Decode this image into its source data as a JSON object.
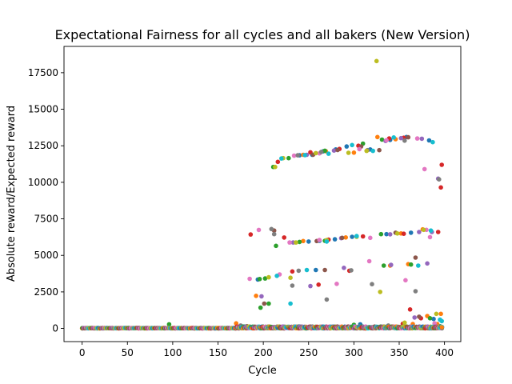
{
  "chart_data": {
    "type": "scatter",
    "title": "Expectational Fairness for all cycles and all bakers (New Version)",
    "xlabel": "Cycle",
    "ylabel": "Absolute reward/Expected reward",
    "xlim": [
      -20,
      418
    ],
    "ylim": [
      -900,
      19300
    ],
    "xticks": [
      0,
      50,
      100,
      150,
      200,
      250,
      300,
      350,
      400
    ],
    "yticks": [
      0,
      2500,
      5000,
      7500,
      10000,
      12500,
      15000,
      17500
    ],
    "grid": false,
    "legend": "none",
    "marker": "circle",
    "palette": [
      "#1f77b4",
      "#ff7f0e",
      "#2ca02c",
      "#d62728",
      "#9467bd",
      "#8c564b",
      "#e377c2",
      "#7f7f7f",
      "#bcbd22",
      "#17becf"
    ],
    "series": [
      {
        "points": [
          [
            240,
            11850
          ],
          [
            254,
            11880
          ],
          [
            266,
            12120
          ],
          [
            280,
            12250
          ],
          [
            292,
            12450
          ],
          [
            318,
            12250
          ],
          [
            340,
            12900
          ],
          [
            358,
            13100
          ],
          [
            383,
            12870
          ],
          [
            250,
            5950
          ],
          [
            262,
            6000
          ],
          [
            279,
            6100
          ],
          [
            298,
            6270
          ],
          [
            336,
            6450
          ],
          [
            363,
            6550
          ],
          [
            194,
            3350
          ],
          [
            258,
            4000
          ],
          [
            307,
            280
          ],
          [
            388,
            650
          ],
          [
            392,
            100
          ]
        ]
      },
      {
        "points": [
          [
            244,
            11880
          ],
          [
            269,
            12130
          ],
          [
            300,
            12030
          ],
          [
            326,
            13100
          ],
          [
            346,
            12950
          ],
          [
            244,
            5980
          ],
          [
            291,
            6230
          ],
          [
            352,
            6500
          ],
          [
            376,
            6780
          ],
          [
            192,
            2230
          ],
          [
            340,
            4300
          ],
          [
            360,
            4400
          ],
          [
            381,
            850
          ],
          [
            396,
            1000
          ],
          [
            170,
            350
          ],
          [
            365,
            300
          ],
          [
            392,
            300
          ]
        ]
      },
      {
        "points": [
          [
            211,
            11050
          ],
          [
            228,
            11650
          ],
          [
            268,
            12160
          ],
          [
            310,
            12650
          ],
          [
            331,
            12920
          ],
          [
            214,
            5650
          ],
          [
            240,
            5920
          ],
          [
            268,
            6000
          ],
          [
            330,
            6450
          ],
          [
            196,
            3380
          ],
          [
            202,
            3420
          ],
          [
            197,
            1420
          ],
          [
            206,
            1700
          ],
          [
            333,
            4300
          ],
          [
            363,
            4370
          ],
          [
            384,
            700
          ],
          [
            96,
            280
          ],
          [
            300,
            250
          ],
          [
            395,
            150
          ]
        ]
      },
      {
        "points": [
          [
            216,
            11400
          ],
          [
            252,
            12050
          ],
          [
            284,
            12280
          ],
          [
            305,
            12500
          ],
          [
            339,
            13000
          ],
          [
            355,
            13050
          ],
          [
            397,
            11200
          ],
          [
            186,
            6430
          ],
          [
            223,
            6220
          ],
          [
            272,
            6080
          ],
          [
            310,
            6300
          ],
          [
            355,
            6480
          ],
          [
            393,
            6600
          ],
          [
            232,
            3900
          ],
          [
            261,
            3000
          ],
          [
            295,
            3950
          ],
          [
            362,
            1300
          ],
          [
            374,
            700
          ],
          [
            354,
            320
          ],
          [
            396,
            9650
          ]
        ]
      },
      {
        "points": [
          [
            248,
            11880
          ],
          [
            278,
            12170
          ],
          [
            335,
            12830
          ],
          [
            352,
            13020
          ],
          [
            375,
            12980
          ],
          [
            393,
            10250
          ],
          [
            233,
            5880
          ],
          [
            286,
            6180
          ],
          [
            340,
            6440
          ],
          [
            372,
            6600
          ],
          [
            198,
            2200
          ],
          [
            252,
            2900
          ],
          [
            289,
            4150
          ],
          [
            341,
            4350
          ],
          [
            381,
            4450
          ],
          [
            386,
            6600
          ],
          [
            367,
            750
          ]
        ]
      },
      {
        "points": [
          [
            255,
            11890
          ],
          [
            282,
            12210
          ],
          [
            308,
            12450
          ],
          [
            328,
            12200
          ],
          [
            360,
            13080
          ],
          [
            212,
            6700
          ],
          [
            259,
            5980
          ],
          [
            287,
            6200
          ],
          [
            346,
            6550
          ],
          [
            201,
            1700
          ],
          [
            268,
            4000
          ],
          [
            368,
            4850
          ],
          [
            372,
            800
          ],
          [
            182,
            150
          ]
        ]
      },
      {
        "points": [
          [
            234,
            11820
          ],
          [
            262,
            11980
          ],
          [
            306,
            12270
          ],
          [
            336,
            12880
          ],
          [
            370,
            13000
          ],
          [
            195,
            6740
          ],
          [
            229,
            5880
          ],
          [
            262,
            6050
          ],
          [
            318,
            6200
          ],
          [
            380,
            6750
          ],
          [
            384,
            6250
          ],
          [
            185,
            3400
          ],
          [
            218,
            3700
          ],
          [
            281,
            3050
          ],
          [
            317,
            4600
          ],
          [
            357,
            3300
          ],
          [
            378,
            10900
          ],
          [
            389,
            350
          ]
        ]
      },
      {
        "points": [
          [
            209,
            6800
          ],
          [
            212,
            6450
          ],
          [
            238,
            11850
          ],
          [
            264,
            12080
          ],
          [
            315,
            12200
          ],
          [
            356,
            12850
          ],
          [
            232,
            2930
          ],
          [
            239,
            3950
          ],
          [
            270,
            1980
          ],
          [
            297,
            3980
          ],
          [
            320,
            3030
          ],
          [
            368,
            2550
          ],
          [
            394,
            10200
          ],
          [
            175,
            200
          ],
          [
            338,
            200
          ],
          [
            391,
            80
          ]
        ]
      },
      {
        "points": [
          [
            213,
            11050
          ],
          [
            222,
            11650
          ],
          [
            258,
            12000
          ],
          [
            294,
            12020
          ],
          [
            314,
            12150
          ],
          [
            325,
            18300
          ],
          [
            236,
            5880
          ],
          [
            270,
            6050
          ],
          [
            303,
            6270
          ],
          [
            348,
            6500
          ],
          [
            377,
            6750
          ],
          [
            206,
            3500
          ],
          [
            230,
            3470
          ],
          [
            329,
            2500
          ],
          [
            391,
            1000
          ],
          [
            356,
            400
          ]
        ]
      },
      {
        "points": [
          [
            220,
            11630
          ],
          [
            246,
            11860
          ],
          [
            272,
            11960
          ],
          [
            298,
            12550
          ],
          [
            321,
            12150
          ],
          [
            344,
            13070
          ],
          [
            387,
            12750
          ],
          [
            215,
            3600
          ],
          [
            230,
            1700
          ],
          [
            248,
            4000
          ],
          [
            270,
            5950
          ],
          [
            303,
            6320
          ],
          [
            385,
            6700
          ],
          [
            371,
            4300
          ],
          [
            395,
            600
          ],
          [
            397,
            500
          ],
          [
            300,
            150
          ]
        ]
      }
    ]
  }
}
